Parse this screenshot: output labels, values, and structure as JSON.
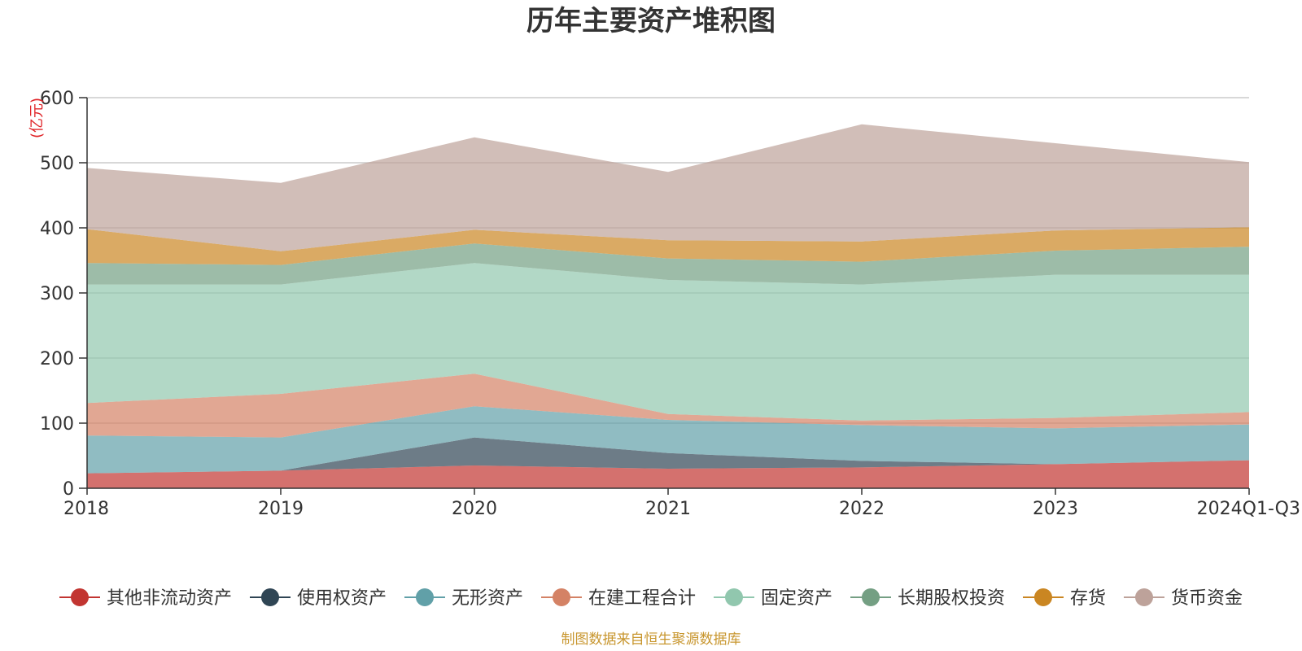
{
  "chart_data": {
    "type": "area",
    "stacked": true,
    "title": "历年主要资产堆积图",
    "unit_label": "(亿元)",
    "x": [
      "2018",
      "2019",
      "2020",
      "2021",
      "2022",
      "2023",
      "2024Q1-Q3"
    ],
    "ylim": [
      0,
      600
    ],
    "yticks": [
      0,
      100,
      200,
      300,
      400,
      500,
      600
    ],
    "grid": true,
    "legend_position": "bottom",
    "series": [
      {
        "name": "其他非流动资产",
        "color": "#c23531",
        "values": [
          23,
          27,
          35,
          30,
          32,
          37,
          43
        ]
      },
      {
        "name": "使用权资产",
        "color": "#2f4554",
        "values": [
          0,
          0,
          43,
          24,
          10,
          0,
          0
        ]
      },
      {
        "name": "无形资产",
        "color": "#61a0a8",
        "values": [
          58,
          51,
          48,
          51,
          55,
          55,
          55
        ]
      },
      {
        "name": "在建工程合计",
        "color": "#d48265",
        "values": [
          50,
          67,
          50,
          9,
          7,
          16,
          19
        ]
      },
      {
        "name": "固定资产",
        "color": "#91c7ae",
        "values": [
          182,
          168,
          170,
          206,
          209,
          220,
          211
        ]
      },
      {
        "name": "长期股权投资",
        "color": "#749f83",
        "values": [
          33,
          30,
          30,
          33,
          35,
          37,
          43
        ]
      },
      {
        "name": "存货",
        "color": "#ca8622",
        "values": [
          52,
          21,
          21,
          28,
          31,
          31,
          30
        ]
      },
      {
        "name": "货币资金",
        "color": "#bda29a",
        "values": [
          94,
          105,
          142,
          105,
          180,
          134,
          100
        ]
      }
    ],
    "source_note": "制图数据来自恒生聚源数据库"
  }
}
